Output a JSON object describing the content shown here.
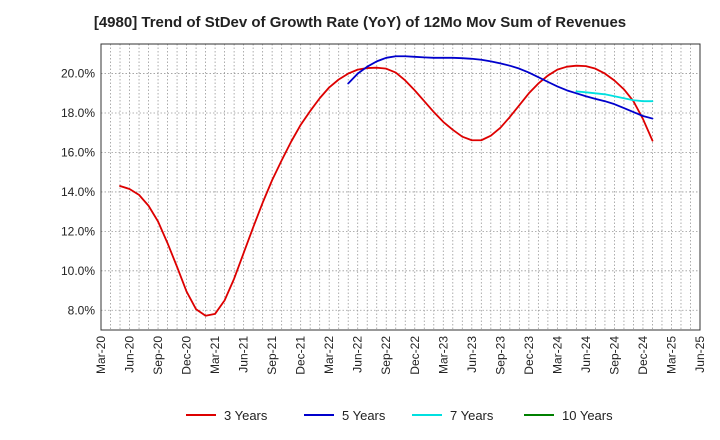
{
  "chart_data": {
    "type": "line",
    "title": "[4980]  Trend of StDev of Growth Rate (YoY) of 12Mo Mov Sum of Revenues",
    "xlabel": "",
    "ylabel": "",
    "x_ticks": [
      "Mar-20",
      "Jun-20",
      "Sep-20",
      "Dec-20",
      "Mar-21",
      "Jun-21",
      "Sep-21",
      "Dec-21",
      "Mar-22",
      "Jun-22",
      "Sep-22",
      "Dec-22",
      "Mar-23",
      "Jun-23",
      "Sep-23",
      "Dec-23",
      "Mar-24",
      "Jun-24",
      "Sep-24",
      "Dec-24",
      "Mar-25",
      "Jun-25"
    ],
    "y_ticks": [
      "8.0%",
      "10.0%",
      "12.0%",
      "14.0%",
      "16.0%",
      "18.0%",
      "20.0%"
    ],
    "y_tick_values": [
      8,
      10,
      12,
      14,
      16,
      18,
      20
    ],
    "ylim": [
      7.0,
      21.5
    ],
    "x_range_months": [
      0,
      63
    ],
    "series": [
      {
        "name": "3 Years",
        "color": "#dd0000",
        "points": [
          [
            2,
            14.3
          ],
          [
            3,
            14.15
          ],
          [
            4,
            13.85
          ],
          [
            5,
            13.3
          ],
          [
            6,
            12.5
          ],
          [
            7,
            11.4
          ],
          [
            8,
            10.2
          ],
          [
            9,
            8.95
          ],
          [
            10,
            8.05
          ],
          [
            11,
            7.72
          ],
          [
            12,
            7.82
          ],
          [
            13,
            8.5
          ],
          [
            14,
            9.6
          ],
          [
            15,
            10.9
          ],
          [
            16,
            12.2
          ],
          [
            17,
            13.45
          ],
          [
            18,
            14.6
          ],
          [
            19,
            15.6
          ],
          [
            20,
            16.55
          ],
          [
            21,
            17.4
          ],
          [
            22,
            18.1
          ],
          [
            23,
            18.75
          ],
          [
            24,
            19.3
          ],
          [
            25,
            19.7
          ],
          [
            26,
            20.0
          ],
          [
            27,
            20.2
          ],
          [
            28,
            20.28
          ],
          [
            29,
            20.3
          ],
          [
            30,
            20.25
          ],
          [
            31,
            20.05
          ],
          [
            32,
            19.65
          ],
          [
            33,
            19.15
          ],
          [
            34,
            18.6
          ],
          [
            35,
            18.05
          ],
          [
            36,
            17.55
          ],
          [
            37,
            17.15
          ],
          [
            38,
            16.8
          ],
          [
            39,
            16.62
          ],
          [
            40,
            16.62
          ],
          [
            41,
            16.85
          ],
          [
            42,
            17.25
          ],
          [
            43,
            17.8
          ],
          [
            44,
            18.4
          ],
          [
            45,
            19.0
          ],
          [
            46,
            19.5
          ],
          [
            47,
            19.9
          ],
          [
            48,
            20.2
          ],
          [
            49,
            20.35
          ],
          [
            50,
            20.4
          ],
          [
            51,
            20.38
          ],
          [
            52,
            20.25
          ],
          [
            53,
            20.0
          ],
          [
            54,
            19.65
          ],
          [
            55,
            19.2
          ],
          [
            56,
            18.6
          ],
          [
            57,
            17.7
          ],
          [
            58,
            16.6
          ]
        ]
      },
      {
        "name": "5 Years",
        "color": "#0000cc",
        "points": [
          [
            26,
            19.5
          ],
          [
            27,
            20.0
          ],
          [
            28,
            20.35
          ],
          [
            29,
            20.62
          ],
          [
            30,
            20.8
          ],
          [
            31,
            20.88
          ],
          [
            32,
            20.88
          ],
          [
            33,
            20.85
          ],
          [
            34,
            20.82
          ],
          [
            35,
            20.8
          ],
          [
            36,
            20.8
          ],
          [
            37,
            20.8
          ],
          [
            38,
            20.78
          ],
          [
            39,
            20.75
          ],
          [
            40,
            20.7
          ],
          [
            41,
            20.62
          ],
          [
            42,
            20.52
          ],
          [
            43,
            20.4
          ],
          [
            44,
            20.25
          ],
          [
            45,
            20.05
          ],
          [
            46,
            19.82
          ],
          [
            47,
            19.58
          ],
          [
            48,
            19.35
          ],
          [
            49,
            19.15
          ],
          [
            50,
            19.0
          ],
          [
            51,
            18.85
          ],
          [
            52,
            18.72
          ],
          [
            53,
            18.6
          ],
          [
            54,
            18.45
          ],
          [
            55,
            18.25
          ],
          [
            56,
            18.05
          ],
          [
            57,
            17.85
          ],
          [
            58,
            17.72
          ]
        ]
      },
      {
        "name": "7 Years",
        "color": "#00e0e0",
        "points": [
          [
            50,
            19.1
          ],
          [
            51,
            19.05
          ],
          [
            52,
            19.0
          ],
          [
            53,
            18.95
          ],
          [
            54,
            18.85
          ],
          [
            55,
            18.75
          ],
          [
            56,
            18.65
          ],
          [
            57,
            18.6
          ],
          [
            58,
            18.6
          ]
        ]
      },
      {
        "name": "10 Years",
        "color": "#008000",
        "points": []
      }
    ],
    "legend_position": "bottom"
  }
}
